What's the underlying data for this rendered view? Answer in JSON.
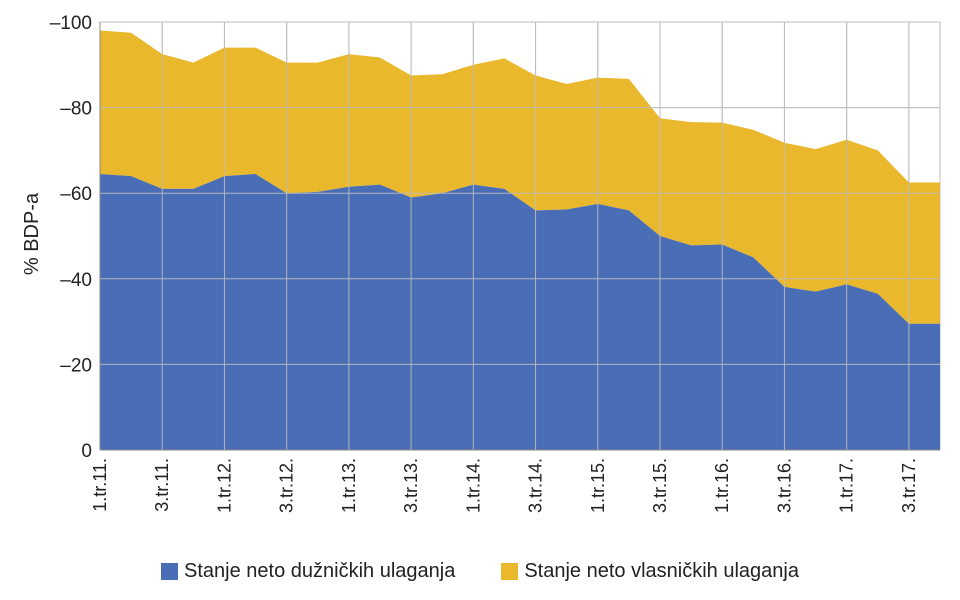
{
  "colors": {
    "debt": "#4a6eb5",
    "equity": "#eab82c",
    "grid": "#bdbdbd"
  },
  "chart_data": {
    "type": "area",
    "stacked": true,
    "ylabel": "% BDP-a",
    "ylim": [
      0,
      -100
    ],
    "yticks": [
      0,
      -20,
      -40,
      -60,
      -80,
      -100
    ],
    "ytick_labels": [
      "0",
      "–20",
      "–40",
      "–60",
      "–80",
      "–100"
    ],
    "categories": [
      "1.tr.11.",
      "",
      "3.tr.11.",
      "",
      "1.tr.12.",
      "",
      "3.tr.12.",
      "",
      "1.tr.13.",
      "",
      "3.tr.13.",
      "",
      "1.tr.14.",
      "",
      "3.tr.14.",
      "",
      "1.tr.15.",
      "",
      "3.tr.15.",
      "",
      "1.tr.16.",
      "",
      "3.tr.16.",
      "",
      "1.tr.17.",
      "",
      "3.tr.17.",
      ""
    ],
    "series": [
      {
        "name": "Stanje neto dužničkih ulaganja",
        "values": [
          -64.5,
          -64,
          -61,
          -61,
          -64,
          -64.5,
          -60,
          -60.3,
          -61.5,
          -62,
          -59,
          -60,
          -62,
          -61,
          -56,
          -56.2,
          -57.5,
          -56,
          -50,
          -47.8,
          -48,
          -45,
          -38.1,
          -37,
          -38.7,
          -36.5,
          -29.5,
          -29.5
        ]
      },
      {
        "name": "Stanje neto vlasničkih ulaganja",
        "values": [
          -33.5,
          -33.5,
          -31.5,
          -29.5,
          -30,
          -29.5,
          -30.5,
          -30.2,
          -31,
          -29.7,
          -28.5,
          -27.8,
          -28,
          -30.5,
          -31.5,
          -29.3,
          -29.5,
          -30.7,
          -27.5,
          -28.8,
          -28.5,
          -29.8,
          -33.7,
          -33.3,
          -33.8,
          -33.5,
          -33,
          -33
        ]
      }
    ],
    "legend": "bottom"
  }
}
